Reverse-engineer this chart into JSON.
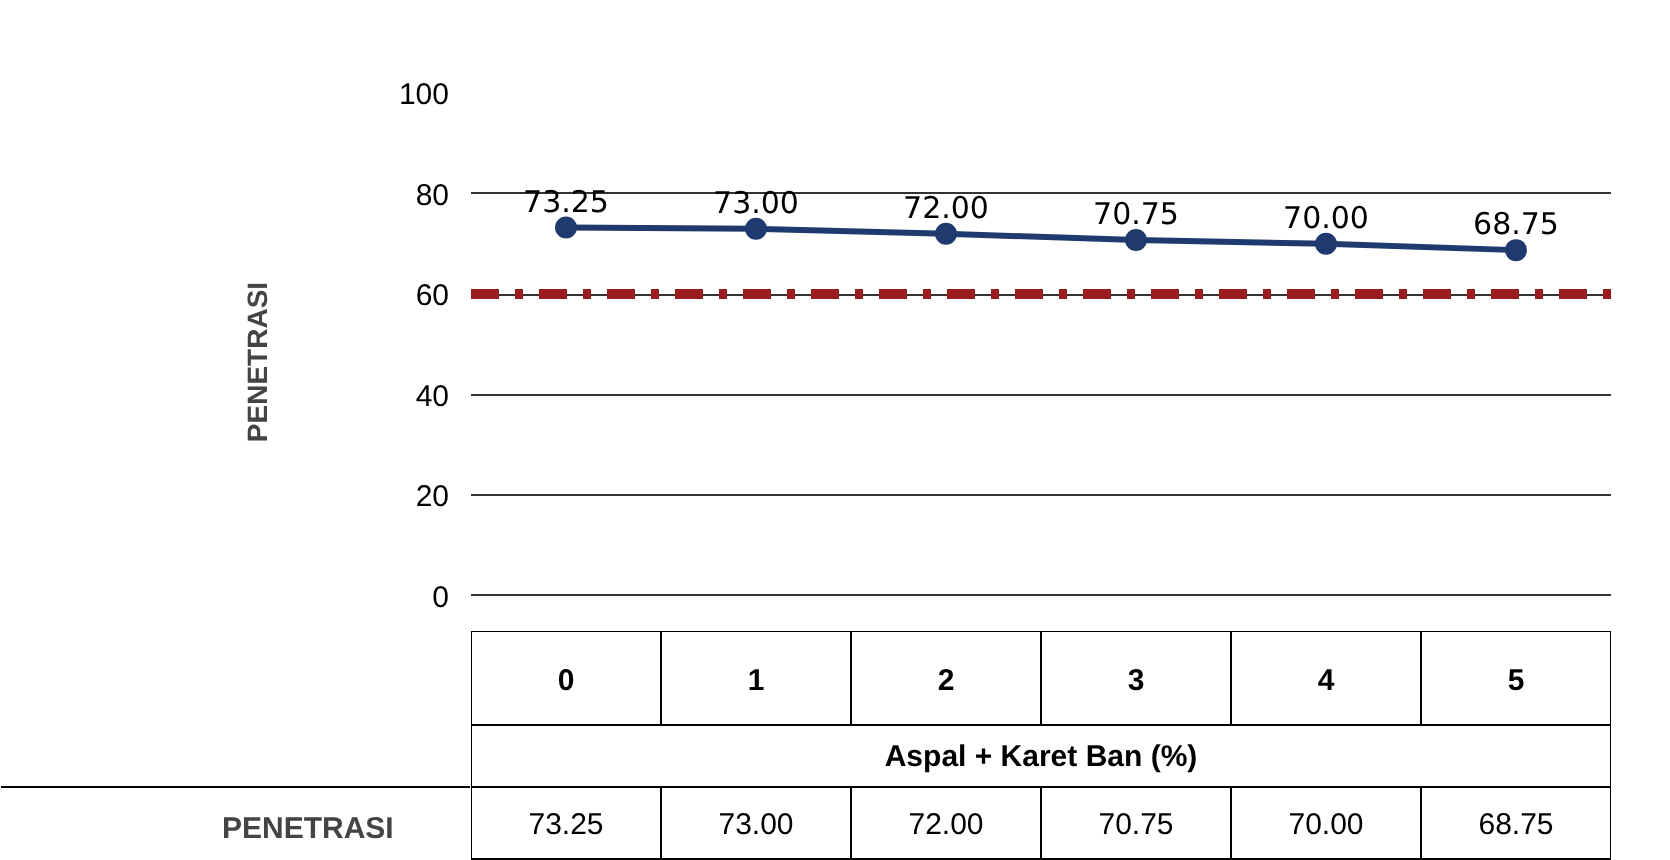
{
  "chart_data": {
    "type": "line",
    "xlabel": "Aspal + Karet Ban (%)",
    "ylabel": "PENETRASI",
    "categories": [
      "0",
      "1",
      "2",
      "3",
      "4",
      "5"
    ],
    "series": [
      {
        "name": "PENETRASI",
        "color": "#1f3a6e",
        "values": [
          73.25,
          73.0,
          72.0,
          70.75,
          70.0,
          68.75
        ],
        "value_labels": [
          "73.25",
          "73.00",
          "72.00",
          "70.75",
          "70.00",
          "68.75"
        ]
      }
    ],
    "ylim": [
      -7,
      100
    ],
    "yticks": [
      0,
      20,
      40,
      60,
      80,
      100
    ],
    "grid": "y",
    "ref_lines": [
      {
        "axis": "y",
        "value": 60,
        "color": "#9b1c1c",
        "line_style": "dashdot"
      }
    ],
    "legend": "bottom",
    "marker": "circle",
    "line_style": "solid"
  }
}
